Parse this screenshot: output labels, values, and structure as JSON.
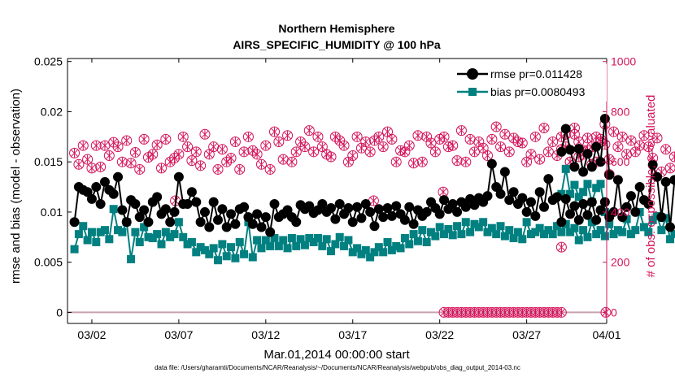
{
  "chart_data": {
    "type": "line",
    "title": "Northern Hemisphere",
    "subtitle": "AIRS_SPECIFIC_HUMIDITY @ 100 hPa",
    "xlabel": "Mar.01,2014 00:00:00 start",
    "ylabel": "rmse and bias (model - observation)",
    "ylabel_right": "# of obs: o=possible; ×=evaluated",
    "footnote": "data file: /Users/gharamti/Documents/NCAR/Reanalysis/~/Documents/NCAR/Reanalysis/webpub/obs_diag_output_2014-03.nc",
    "xlim": [
      0.6,
      31.6
    ],
    "ylim": [
      -0.0011,
      0.0253
    ],
    "ylim_right": [
      -44,
      1012
    ],
    "xticks": [
      {
        "x": 2,
        "label": "03/02"
      },
      {
        "x": 7,
        "label": "03/07"
      },
      {
        "x": 12,
        "label": "03/12"
      },
      {
        "x": 17,
        "label": "03/17"
      },
      {
        "x": 22,
        "label": "03/22"
      },
      {
        "x": 27,
        "label": "03/27"
      },
      {
        "x": 32,
        "label": "04/01"
      }
    ],
    "yticks": [
      {
        "v": 0,
        "label": "0"
      },
      {
        "v": 0.005,
        "label": "0.005"
      },
      {
        "v": 0.01,
        "label": "0.01"
      },
      {
        "v": 0.015,
        "label": "0.015"
      },
      {
        "v": 0.02,
        "label": "0.02"
      },
      {
        "v": 0.025,
        "label": "0.025"
      }
    ],
    "yticks_right": [
      {
        "v": 0,
        "label": "0"
      },
      {
        "v": 200,
        "label": "200"
      },
      {
        "v": 400,
        "label": "400"
      },
      {
        "v": 600,
        "label": "600"
      },
      {
        "v": 800,
        "label": "800"
      },
      {
        "v": 1000,
        "label": "1000"
      }
    ],
    "legend": {
      "position": "top-right",
      "entries": [
        "rmse pr=0.011428",
        "bias pr=0.0080493"
      ]
    },
    "colors": {
      "rmse": "#000000",
      "bias": "#008080",
      "obs": "#d4145a",
      "zero_line": "#c8a0b0"
    },
    "segments": [
      {
        "x0": 1.0,
        "dx": 0.25,
        "rmse": [
          0.009,
          0.0125,
          0.0122,
          0.012,
          0.0113,
          0.0125,
          0.0108,
          0.013,
          0.0122,
          0.0118,
          0.0135,
          0.0102,
          0.009,
          0.0112,
          0.0108,
          0.0095,
          0.0102,
          0.009,
          0.011,
          0.0115,
          0.0098,
          0.0103,
          0.009,
          0.01,
          0.0135,
          0.0108,
          0.0108,
          0.012,
          0.011,
          0.009,
          0.01,
          0.0085,
          0.011,
          0.0092,
          0.0103,
          0.0085,
          0.0098,
          0.0088,
          0.0103,
          0.0105,
          0.0095,
          0.0088,
          0.0098,
          0.0085,
          0.0095,
          0.008,
          0.0108,
          0.0095,
          0.0098,
          0.0102,
          0.0095,
          0.009,
          0.0107,
          0.0103,
          0.0106,
          0.0099,
          0.0102,
          0.0108,
          0.01,
          0.0104,
          0.0093,
          0.0108,
          0.0098,
          0.0104,
          0.009,
          0.0105,
          0.0094,
          0.0108,
          0.01,
          0.0086,
          0.0103,
          0.0095,
          0.0104,
          0.0096,
          0.0106,
          0.0098,
          0.0092,
          0.0105,
          0.0088,
          0.0102,
          0.0096,
          0.01,
          0.011,
          0.0104,
          0.0098,
          0.0112,
          0.0103,
          0.0108,
          0.01,
          0.011,
          0.0105,
          0.0113,
          0.0107,
          0.0114,
          0.011,
          0.0116,
          0.0148,
          0.0125,
          0.0118,
          0.014,
          0.0112,
          0.012,
          0.0108,
          0.0114,
          0.01,
          0.011,
          0.0096,
          0.012,
          0.0105,
          0.0133,
          0.0112,
          0.0115,
          0.009,
          0.0113,
          0.0098,
          0.0106,
          0.0092,
          0.0108,
          0.0097,
          0.011,
          0.0092,
          0.0102,
          0.011,
          0.0095,
          0.01,
          0.0132,
          0.0095,
          0.0105,
          0.0116,
          0.01,
          0.0125,
          0.0112,
          0.0108,
          0.0147,
          0.0135,
          0.0095,
          0.013,
          0.0085,
          0.0132
        ],
        "bias": [
          0.0063,
          0.0078,
          0.0086,
          0.0072,
          0.008,
          0.007,
          0.008,
          0.0082,
          0.0073,
          0.0103,
          0.0082,
          0.008,
          0.009,
          0.0053,
          0.008,
          0.007,
          0.0085,
          0.0075,
          0.0074,
          0.0078,
          0.0068,
          0.008,
          0.0075,
          0.0078,
          0.009,
          0.0075,
          0.0068,
          0.007,
          0.006,
          0.0065,
          0.0062,
          0.0058,
          0.0064,
          0.0052,
          0.0068,
          0.0056,
          0.0065,
          0.0054,
          0.007,
          0.0058,
          0.009,
          0.0055,
          0.0072,
          0.0064,
          0.0072,
          0.0066,
          0.0074,
          0.0066,
          0.0072,
          0.0064,
          0.0074,
          0.0066,
          0.0073,
          0.0067,
          0.0074,
          0.007,
          0.0074,
          0.0066,
          0.0073,
          0.0061,
          0.0068,
          0.0075,
          0.0066,
          0.0072,
          0.006,
          0.0064,
          0.0058,
          0.0062,
          0.0055,
          0.006,
          0.0065,
          0.006,
          0.007,
          0.0062,
          0.0066,
          0.0064,
          0.0074,
          0.0068,
          0.0078,
          0.0071,
          0.0082,
          0.007,
          0.008,
          0.0076,
          0.0085,
          0.0078,
          0.0083,
          0.0077,
          0.0086,
          0.0078,
          0.009,
          0.008,
          0.0088,
          0.0085,
          0.009,
          0.008,
          0.0084,
          0.0078,
          0.0086,
          0.0076,
          0.0082,
          0.0074,
          0.008,
          0.0073,
          0.009,
          0.0078,
          0.008,
          0.0084,
          0.0078,
          0.0082,
          0.0078,
          0.0086,
          0.008,
          0.0088,
          0.008,
          0.0084,
          0.0072,
          0.0082,
          0.0075,
          0.009,
          0.0078,
          0.0082,
          0.0076,
          0.0088,
          0.0078,
          0.0082,
          0.008,
          0.0093,
          0.0078,
          0.0082,
          0.01,
          0.0085,
          0.008,
          0.0092,
          0.0096,
          0.0082,
          0.0094,
          0.0073,
          0.0078
        ],
        "possible": [
          635,
          590,
          665,
          610,
          575,
          665,
          580,
          665,
          625,
          678,
          660,
          600,
          685,
          595,
          638,
          570,
          690,
          618,
          630,
          668,
          575,
          690,
          600,
          615,
          630,
          700,
          660,
          605,
          640,
          585,
          710,
          630,
          660,
          570,
          650,
          600,
          615,
          680,
          570,
          640,
          700,
          645,
          630,
          590,
          665,
          570,
          720,
          680,
          610,
          705,
          600,
          640,
          680,
          660,
          725,
          640,
          700,
          660,
          630,
          620,
          700,
          685,
          665,
          600,
          625,
          700,
          655,
          680,
          640,
          685,
          700,
          660,
          720,
          690,
          600,
          645,
          640,
          665,
          595,
          705,
          600,
          700,
          675,
          640,
          690,
          700,
          660,
          665,
          605,
          725,
          600,
          690,
          640,
          680,
          655,
          625,
          690,
          740,
          660,
          710,
          640,
          695,
          680,
          675,
          600,
          630,
          700,
          610,
          735,
          640,
          680,
          625,
          700,
          660,
          600,
          735,
          680,
          645,
          695,
          660,
          600,
          690,
          670,
          610,
          720,
          660,
          700,
          630,
          685,
          640,
          665,
          705,
          660,
          615,
          695,
          560,
          650,
          575,
          620
        ],
        "evaluated": [
          635,
          590,
          665,
          610,
          575,
          665,
          580,
          665,
          625,
          678,
          660,
          600,
          685,
          595,
          638,
          570,
          690,
          618,
          630,
          668,
          575,
          690,
          600,
          615,
          630,
          700,
          660,
          605,
          640,
          585,
          710,
          630,
          660,
          570,
          650,
          600,
          615,
          680,
          570,
          640,
          700,
          645,
          630,
          590,
          665,
          570,
          720,
          680,
          610,
          705,
          600,
          640,
          680,
          660,
          725,
          640,
          700,
          660,
          630,
          620,
          700,
          685,
          665,
          600,
          625,
          700,
          655,
          680,
          640,
          685,
          700,
          660,
          720,
          690,
          600,
          645,
          640,
          665,
          595,
          705,
          600,
          700,
          675,
          640,
          690,
          700,
          660,
          665,
          605,
          725,
          600,
          690,
          640,
          680,
          655,
          625,
          690,
          740,
          660,
          710,
          640,
          695,
          680,
          675,
          600,
          630,
          700,
          610,
          735,
          640,
          680,
          625,
          700,
          660,
          600,
          735,
          680,
          645,
          695,
          660,
          600,
          690,
          670,
          610,
          720,
          660,
          700,
          630,
          685,
          640,
          665,
          705,
          660,
          615,
          695,
          560,
          650,
          575,
          620
        ]
      },
      {
        "x0": 29.0,
        "dx": 0.25,
        "rmse": [
          0.016,
          0.0183,
          0.0162,
          0.0145,
          0.0163,
          0.014,
          0.0158,
          0.0145,
          0.0165,
          0.015,
          0.0193,
          0.0137
        ],
        "bias": [
          0.0118,
          0.0143,
          0.0118,
          0.0127,
          0.0115,
          0.012,
          0.0128,
          0.011,
          0.0124,
          0.0128,
          0.01,
          null
        ],
        "possible": [
          650,
          710,
          600,
          710,
          620,
          630,
          645,
          590,
          700,
          680,
          750,
          550
        ],
        "evaluated": [
          650,
          710,
          600,
          710,
          620,
          630,
          645,
          590,
          700,
          680,
          750,
          550
        ]
      }
    ],
    "zero_obs": {
      "x_start": 22.25,
      "x_end": 29.0,
      "dx": 0.25,
      "extra_x": [
        31.55
      ]
    },
    "outliers": [
      {
        "x": 29.0,
        "possible": 260,
        "evaluated": 260
      },
      {
        "x": 18.2,
        "possible": 445,
        "evaluated": 445
      },
      {
        "x": 6.8,
        "possible": 445,
        "evaluated": 445
      },
      {
        "x": 22.2,
        "possible": 480,
        "evaluated": 480
      }
    ]
  }
}
